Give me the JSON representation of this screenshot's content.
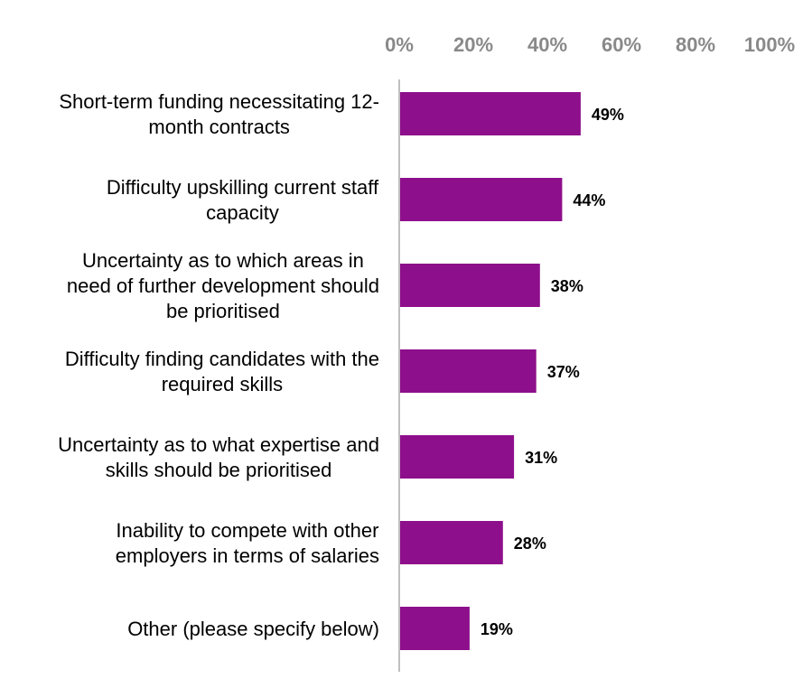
{
  "chart_data": {
    "type": "bar",
    "orientation": "horizontal",
    "title": "",
    "xlabel": "",
    "ylabel": "",
    "xlim": [
      0,
      100
    ],
    "x_ticks": [
      "0%",
      "20%",
      "40%",
      "60%",
      "80%",
      "100%"
    ],
    "x_tick_values": [
      0,
      20,
      40,
      60,
      80,
      100
    ],
    "axis_position": "top",
    "grid": false,
    "legend": "none",
    "bar_color": "#8E0F8C",
    "axis_color": "#BFBFBF",
    "tick_label_color": "#898989",
    "categories": [
      [
        "Short-term funding necessitating 12-",
        "month contracts"
      ],
      [
        "Difficulty upskilling current staff",
        "capacity"
      ],
      [
        "Uncertainty as to which areas in",
        "need of further development should",
        "be prioritised"
      ],
      [
        "Difficulty finding candidates with the",
        "required skills"
      ],
      [
        "Uncertainty as to what expertise and",
        "skills should be prioritised"
      ],
      [
        "Inability to compete with other",
        "employers in terms of salaries"
      ],
      [
        "Other (please specify below)"
      ]
    ],
    "values": [
      49,
      44,
      38,
      37,
      31,
      28,
      19
    ],
    "data_labels": [
      "49%",
      "44%",
      "38%",
      "37%",
      "31%",
      "28%",
      "19%"
    ]
  }
}
